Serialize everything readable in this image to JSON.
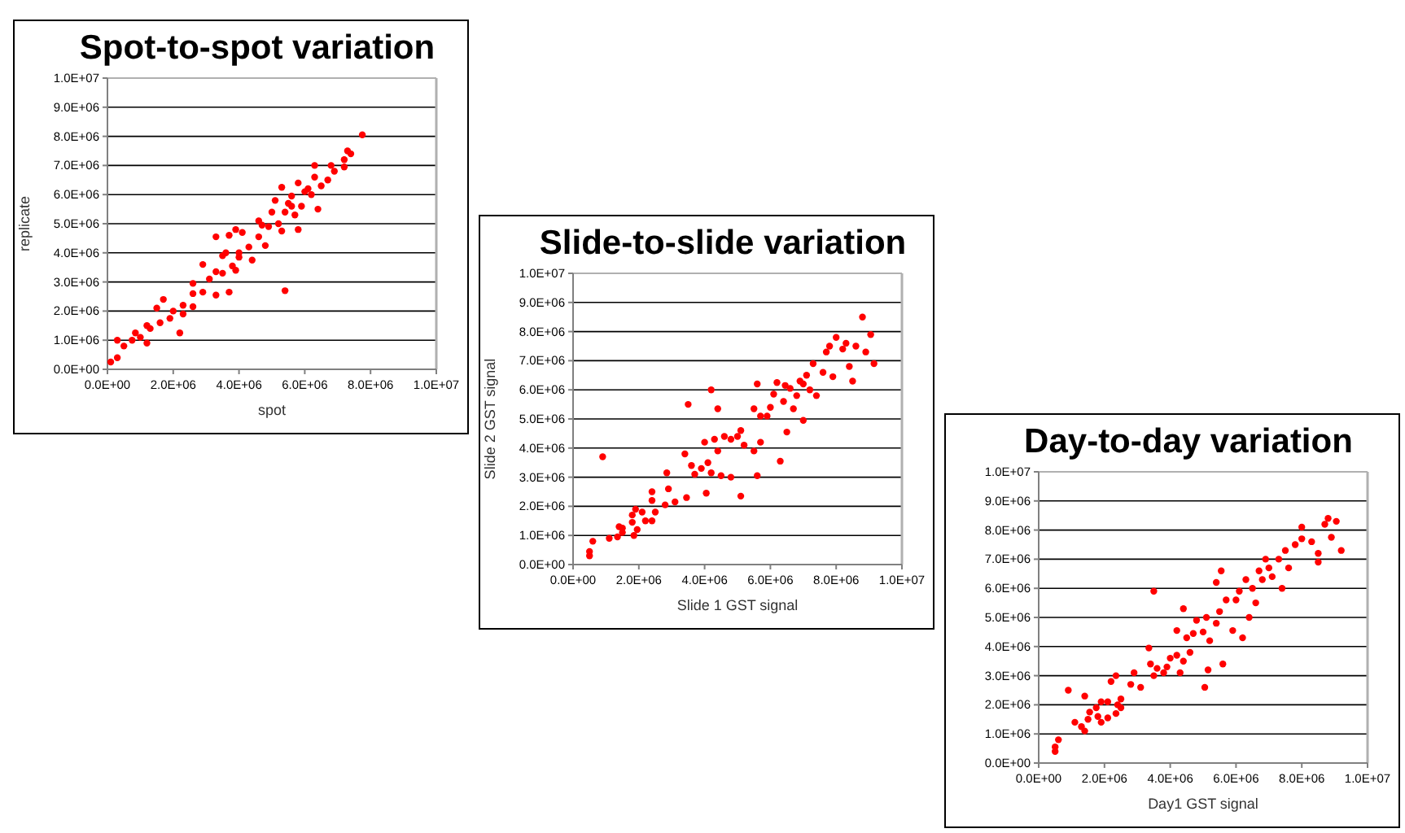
{
  "chart_data": [
    {
      "type": "scatter",
      "title": "Spot-to-spot variation",
      "xlabel": "spot",
      "ylabel": "replicate",
      "grid": "y",
      "marker": "circle",
      "xlim": [
        0,
        10000000.0
      ],
      "ylim": [
        0,
        10000000.0
      ],
      "xticks": [
        {
          "value": 0,
          "label": "0.0E+00"
        },
        {
          "value": 2000000.0,
          "label": "2.0E+06"
        },
        {
          "value": 4000000.0,
          "label": "4.0E+06"
        },
        {
          "value": 6000000.0,
          "label": "6.0E+06"
        },
        {
          "value": 8000000.0,
          "label": "8.0E+06"
        },
        {
          "value": 10000000.0,
          "label": "1.0E+07"
        }
      ],
      "yticks": [
        {
          "value": 0,
          "label": "0.0E+00"
        },
        {
          "value": 1000000.0,
          "label": "1.0E+06"
        },
        {
          "value": 2000000.0,
          "label": "2.0E+06"
        },
        {
          "value": 3000000.0,
          "label": "3.0E+06"
        },
        {
          "value": 4000000.0,
          "label": "4.0E+06"
        },
        {
          "value": 5000000.0,
          "label": "5.0E+06"
        },
        {
          "value": 6000000.0,
          "label": "6.0E+06"
        },
        {
          "value": 7000000.0,
          "label": "7.0E+06"
        },
        {
          "value": 8000000.0,
          "label": "8.0E+06"
        },
        {
          "value": 9000000.0,
          "label": "9.0E+06"
        },
        {
          "value": 10000000.0,
          "label": "1.0E+07"
        }
      ],
      "series": [
        {
          "color": "#ff0000",
          "x": [
            100000.0,
            300000.0,
            300000.0,
            500000.0,
            750000.0,
            850000.0,
            1000000.0,
            1200000.0,
            1200000.0,
            1300000.0,
            1500000.0,
            1700000.0,
            1600000.0,
            1900000.0,
            2000000.0,
            2200000.0,
            2300000.0,
            2300000.0,
            2600000.0,
            2600000.0,
            2600000.0,
            2900000.0,
            2900000.0,
            3100000.0,
            3300000.0,
            3300000.0,
            3300000.0,
            3500000.0,
            3500000.0,
            3700000.0,
            3700000.0,
            3800000.0,
            3900000.0,
            3900000.0,
            4000000.0,
            4100000.0,
            4300000.0,
            4400000.0,
            4600000.0,
            4600000.0,
            4800000.0,
            4900000.0,
            5000000.0,
            5100000.0,
            5200000.0,
            5300000.0,
            5300000.0,
            5400000.0,
            5400000.0,
            5500000.0,
            5600000.0,
            5700000.0,
            5800000.0,
            5800000.0,
            5900000.0,
            6000000.0,
            6100000.0,
            6300000.0,
            6300000.0,
            6400000.0,
            6500000.0,
            6700000.0,
            6800000.0,
            6900000.0,
            7200000.0,
            7200000.0,
            7300000.0,
            7400000.0,
            7750000.0,
            4700000.0,
            5600000.0,
            6200000.0,
            3600000.0,
            4000000.0
          ],
          "values": [
            250000.0,
            400000.0,
            1000000.0,
            800000.0,
            1000000.0,
            1250000.0,
            1100000.0,
            900000.0,
            1500000.0,
            1400000.0,
            2100000.0,
            2400000.0,
            1600000.0,
            1750000.0,
            2000000.0,
            1250000.0,
            2200000.0,
            1900000.0,
            2150000.0,
            2600000.0,
            2950000.0,
            3600000.0,
            2650000.0,
            3100000.0,
            2550000.0,
            3350000.0,
            4550000.0,
            3300000.0,
            3900000.0,
            4600000.0,
            2650000.0,
            3550000.0,
            3400000.0,
            4800000.0,
            4000000.0,
            4700000.0,
            4200000.0,
            3750000.0,
            4550000.0,
            5100000.0,
            4250000.0,
            4900000.0,
            5400000.0,
            5800000.0,
            5000000.0,
            4750000.0,
            6250000.0,
            5400000.0,
            2700000.0,
            5700000.0,
            5950000.0,
            5300000.0,
            4800000.0,
            6400000.0,
            5600000.0,
            6100000.0,
            6200000.0,
            6600000.0,
            7000000.0,
            5500000.0,
            6300000.0,
            6500000.0,
            7000000.0,
            6800000.0,
            7200000.0,
            6950000.0,
            7500000.0,
            7400000.0,
            8050000.0,
            4950000.0,
            5600000.0,
            6000000.0,
            4000000.0,
            3850000.0
          ]
        }
      ]
    },
    {
      "type": "scatter",
      "title": "Slide-to-slide variation",
      "xlabel": "Slide 1 GST signal",
      "ylabel": "Slide 2 GST signal",
      "grid": "y",
      "marker": "circle",
      "xlim": [
        0,
        10000000.0
      ],
      "ylim": [
        0,
        10000000.0
      ],
      "xticks": [
        {
          "value": 0,
          "label": "0.0E+00"
        },
        {
          "value": 2000000.0,
          "label": "2.0E+06"
        },
        {
          "value": 4000000.0,
          "label": "4.0E+06"
        },
        {
          "value": 6000000.0,
          "label": "6.0E+06"
        },
        {
          "value": 8000000.0,
          "label": "8.0E+06"
        },
        {
          "value": 10000000.0,
          "label": "1.0E+07"
        }
      ],
      "yticks": [
        {
          "value": 0,
          "label": "0.0E+00"
        },
        {
          "value": 1000000.0,
          "label": "1.0E+06"
        },
        {
          "value": 2000000.0,
          "label": "2.0E+06"
        },
        {
          "value": 3000000.0,
          "label": "3.0E+06"
        },
        {
          "value": 4000000.0,
          "label": "4.0E+06"
        },
        {
          "value": 5000000.0,
          "label": "5.0E+06"
        },
        {
          "value": 6000000.0,
          "label": "6.0E+06"
        },
        {
          "value": 7000000.0,
          "label": "7.0E+06"
        },
        {
          "value": 8000000.0,
          "label": "8.0E+06"
        },
        {
          "value": 9000000.0,
          "label": "9.0E+06"
        },
        {
          "value": 10000000.0,
          "label": "1.0E+07"
        }
      ],
      "series": [
        {
          "color": "#ff0000",
          "x": [
            500000.0,
            500000.0,
            600000.0,
            900000.0,
            1100000.0,
            1350000.0,
            1400000.0,
            1500000.0,
            1500000.0,
            1800000.0,
            1800000.0,
            1850000.0,
            1900000.0,
            1950000.0,
            2100000.0,
            2200000.0,
            2400000.0,
            2400000.0,
            2400000.0,
            2500000.0,
            2800000.0,
            2850000.0,
            2900000.0,
            3100000.0,
            3400000.0,
            3450000.0,
            3500000.0,
            3600000.0,
            3700000.0,
            3900000.0,
            4000000.0,
            4050000.0,
            4100000.0,
            4200000.0,
            4200000.0,
            4300000.0,
            4400000.0,
            4400000.0,
            4500000.0,
            4600000.0,
            4800000.0,
            4800000.0,
            5000000.0,
            5100000.0,
            5100000.0,
            5200000.0,
            5500000.0,
            5500000.0,
            5600000.0,
            5600000.0,
            5700000.0,
            5700000.0,
            5900000.0,
            6000000.0,
            6100000.0,
            6200000.0,
            6300000.0,
            6400000.0,
            6500000.0,
            6600000.0,
            6700000.0,
            6800000.0,
            6900000.0,
            7000000.0,
            7000000.0,
            7100000.0,
            7300000.0,
            7400000.0,
            7600000.0,
            7700000.0,
            7800000.0,
            7900000.0,
            8000000.0,
            8200000.0,
            8300000.0,
            8400000.0,
            8500000.0,
            8600000.0,
            8800000.0,
            8900000.0,
            9050000.0,
            9150000.0,
            6450000.0,
            7200000.0
          ],
          "values": [
            300000.0,
            450000.0,
            800000.0,
            3700000.0,
            900000.0,
            950000.0,
            1300000.0,
            1100000.0,
            1250000.0,
            1700000.0,
            1450000.0,
            1000000.0,
            1900000.0,
            1200000.0,
            1800000.0,
            1500000.0,
            2500000.0,
            2200000.0,
            1500000.0,
            1800000.0,
            2050000.0,
            3150000.0,
            2600000.0,
            2150000.0,
            3800000.0,
            2300000.0,
            5500000.0,
            3400000.0,
            3100000.0,
            3300000.0,
            4200000.0,
            2450000.0,
            3500000.0,
            6000000.0,
            3150000.0,
            4300000.0,
            5350000.0,
            3900000.0,
            3050000.0,
            4400000.0,
            3000000.0,
            4300000.0,
            4400000.0,
            2350000.0,
            4600000.0,
            4100000.0,
            5350000.0,
            3900000.0,
            6200000.0,
            3050000.0,
            5100000.0,
            4200000.0,
            5100000.0,
            5400000.0,
            5850000.0,
            6250000.0,
            3550000.0,
            5600000.0,
            4550000.0,
            6050000.0,
            5350000.0,
            5800000.0,
            6300000.0,
            6200000.0,
            4950000.0,
            6500000.0,
            6900000.0,
            5800000.0,
            6600000.0,
            7300000.0,
            7500000.0,
            6450000.0,
            7800000.0,
            7400000.0,
            7600000.0,
            6800000.0,
            6300000.0,
            7500000.0,
            8500000.0,
            7300000.0,
            7900000.0,
            6900000.0,
            6150000.0,
            6000000.0
          ]
        }
      ]
    },
    {
      "type": "scatter",
      "title": "Day-to-day variation",
      "xlabel": "Day1 GST signal",
      "grid": "y",
      "marker": "circle",
      "xlim": [
        0,
        10000000.0
      ],
      "ylim": [
        0,
        10000000.0
      ],
      "xticks": [
        {
          "value": 0,
          "label": "0.0E+00"
        },
        {
          "value": 2000000.0,
          "label": "2.0E+06"
        },
        {
          "value": 4000000.0,
          "label": "4.0E+06"
        },
        {
          "value": 6000000.0,
          "label": "6.0E+06"
        },
        {
          "value": 8000000.0,
          "label": "8.0E+06"
        },
        {
          "value": 10000000.0,
          "label": "1.0E+07"
        }
      ],
      "yticks": [
        {
          "value": 0,
          "label": "0.0E+00"
        },
        {
          "value": 1000000.0,
          "label": "1.0E+06"
        },
        {
          "value": 2000000.0,
          "label": "2.0E+06"
        },
        {
          "value": 3000000.0,
          "label": "3.0E+06"
        },
        {
          "value": 4000000.0,
          "label": "4.0E+06"
        },
        {
          "value": 5000000.0,
          "label": "5.0E+06"
        },
        {
          "value": 6000000.0,
          "label": "6.0E+06"
        },
        {
          "value": 7000000.0,
          "label": "7.0E+06"
        },
        {
          "value": 8000000.0,
          "label": "8.0E+06"
        },
        {
          "value": 9000000.0,
          "label": "9.0E+06"
        },
        {
          "value": 10000000.0,
          "label": "1.0E+07"
        }
      ],
      "series": [
        {
          "color": "#ff0000",
          "x": [
            500000.0,
            500000.0,
            600000.0,
            900000.0,
            1100000.0,
            1300000.0,
            1400000.0,
            1400000.0,
            1500000.0,
            1550000.0,
            1750000.0,
            1800000.0,
            1900000.0,
            1900000.0,
            2100000.0,
            2100000.0,
            2200000.0,
            2350000.0,
            2350000.0,
            2400000.0,
            2500000.0,
            2500000.0,
            2800000.0,
            2900000.0,
            3100000.0,
            3350000.0,
            3400000.0,
            3500000.0,
            3500000.0,
            3600000.0,
            3800000.0,
            3900000.0,
            4000000.0,
            4200000.0,
            4200000.0,
            4300000.0,
            4400000.0,
            4400000.0,
            4500000.0,
            4600000.0,
            4700000.0,
            4800000.0,
            5000000.0,
            5050000.0,
            5100000.0,
            5150000.0,
            5200000.0,
            5400000.0,
            5400000.0,
            5500000.0,
            5550000.0,
            5600000.0,
            5700000.0,
            5900000.0,
            6000000.0,
            6100000.0,
            6200000.0,
            6300000.0,
            6400000.0,
            6500000.0,
            6600000.0,
            6800000.0,
            6900000.0,
            7000000.0,
            7100000.0,
            7300000.0,
            7400000.0,
            7500000.0,
            7600000.0,
            7800000.0,
            8000000.0,
            8000000.0,
            8300000.0,
            8500000.0,
            8500000.0,
            8700000.0,
            8800000.0,
            8900000.0,
            9050000.0,
            9200000.0,
            6700000.0
          ],
          "values": [
            400000.0,
            550000.0,
            800000.0,
            2500000.0,
            1400000.0,
            1250000.0,
            1100000.0,
            2300000.0,
            1500000.0,
            1750000.0,
            1900000.0,
            1600000.0,
            2100000.0,
            1400000.0,
            1550000.0,
            2100000.0,
            2800000.0,
            3000000.0,
            1700000.0,
            2000000.0,
            2200000.0,
            1900000.0,
            2700000.0,
            3100000.0,
            2600000.0,
            3950000.0,
            3400000.0,
            5900000.0,
            3000000.0,
            3250000.0,
            3100000.0,
            3300000.0,
            3600000.0,
            4550000.0,
            3700000.0,
            3100000.0,
            5300000.0,
            3500000.0,
            4300000.0,
            3800000.0,
            4450000.0,
            4900000.0,
            4500000.0,
            2600000.0,
            5000000.0,
            3200000.0,
            4200000.0,
            4800000.0,
            6200000.0,
            5200000.0,
            6600000.0,
            3400000.0,
            5600000.0,
            4550000.0,
            5600000.0,
            5900000.0,
            4300000.0,
            6300000.0,
            5000000.0,
            6000000.0,
            5500000.0,
            6300000.0,
            7000000.0,
            6700000.0,
            6400000.0,
            7000000.0,
            6000000.0,
            7300000.0,
            6700000.0,
            7500000.0,
            7700000.0,
            8100000.0,
            7600000.0,
            7200000.0,
            6900000.0,
            8200000.0,
            8400000.0,
            7750000.0,
            8300000.0,
            7300000.0,
            6600000.0
          ]
        }
      ]
    }
  ]
}
